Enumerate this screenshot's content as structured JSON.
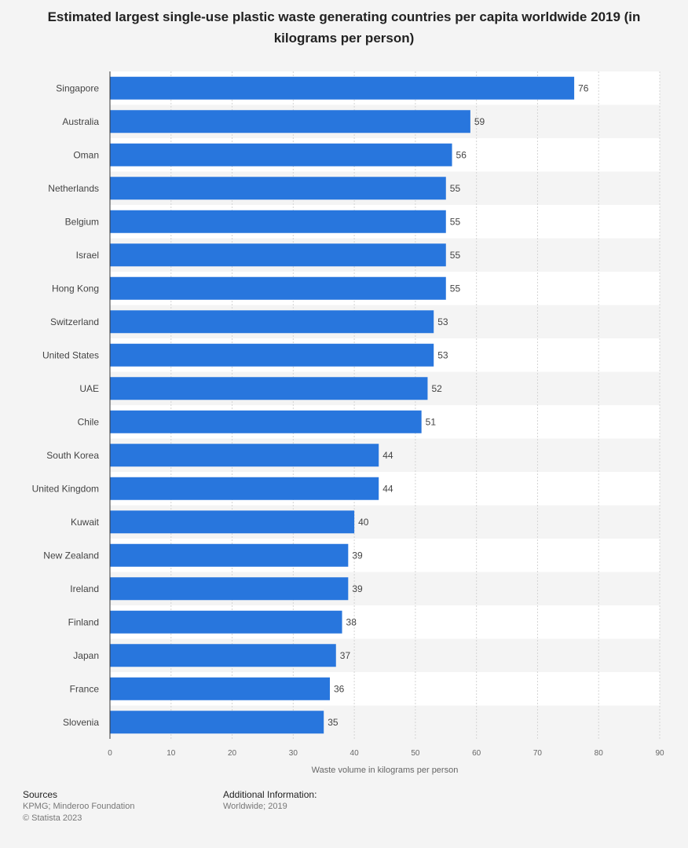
{
  "chart_data": {
    "type": "bar",
    "orientation": "horizontal",
    "title": "Estimated largest single-use plastic waste generating countries per capita worldwide 2019 (in kilograms per person)",
    "xlabel": "Waste volume in kilograms per person",
    "ylabel": "",
    "xlim": [
      0,
      90
    ],
    "ticks": [
      "0",
      "10",
      "20",
      "30",
      "40",
      "50",
      "60",
      "70",
      "80",
      "90"
    ],
    "grid": true,
    "bar_color": "#2876dd",
    "categories": [
      "Singapore",
      "Australia",
      "Oman",
      "Netherlands",
      "Belgium",
      "Israel",
      "Hong Kong",
      "Switzerland",
      "United States",
      "UAE",
      "Chile",
      "South Korea",
      "United Kingdom",
      "Kuwait",
      "New Zealand",
      "Ireland",
      "Finland",
      "Japan",
      "France",
      "Slovenia"
    ],
    "values": [
      76,
      59,
      56,
      55,
      55,
      55,
      55,
      53,
      53,
      52,
      51,
      44,
      44,
      40,
      39,
      39,
      38,
      37,
      36,
      35
    ]
  },
  "footer": {
    "sources_heading": "Sources",
    "sources_text": "KPMG; Minderoo Foundation",
    "copyright": "© Statista 2023",
    "additional_heading": "Additional Information:",
    "additional_text": "Worldwide; 2019"
  }
}
